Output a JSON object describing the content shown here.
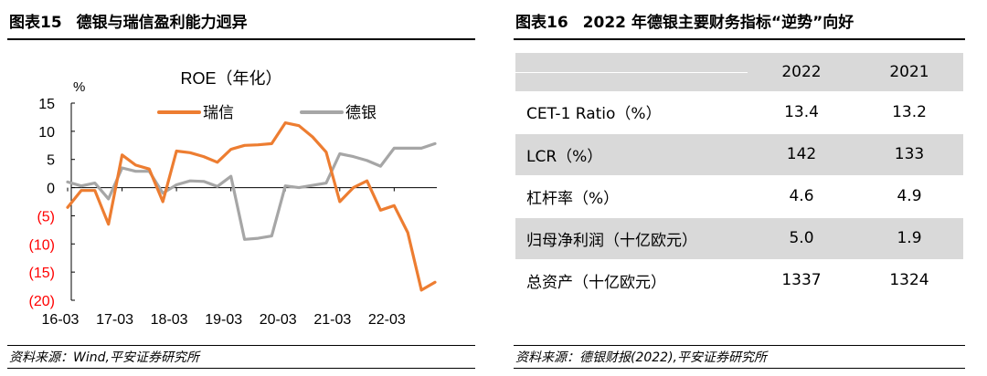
{
  "left": {
    "fig_no": "图表15",
    "fig_title": "德银与瑞信盈利能力迥异",
    "source": "资料来源：Wind,平安证券研究所"
  },
  "right": {
    "fig_no": "图表16",
    "fig_title": "2022 年德银主要财务指标“逆势”向好",
    "source": "资料来源：德银财报(2022),平安证券研究所",
    "table": {
      "headers": [
        "",
        "2022",
        "2021"
      ],
      "rows": [
        {
          "label": "CET-1 Ratio（%）",
          "v2022": "13.4",
          "v2021": "13.2"
        },
        {
          "label": "LCR（%）",
          "v2022": "142",
          "v2021": "133"
        },
        {
          "label": "杠杆率（%）",
          "v2022": "4.6",
          "v2021": "4.9"
        },
        {
          "label": "归母净利润（十亿欧元）",
          "v2022": "5.0",
          "v2021": "1.9"
        },
        {
          "label": "总资产（十亿欧元）",
          "v2022": "1337",
          "v2021": "1324"
        }
      ]
    }
  },
  "chart_data": {
    "type": "line",
    "title": "ROE（年化）",
    "ylabel": "%",
    "ylim": [
      -20,
      15
    ],
    "yticks": [
      15,
      10,
      5,
      0,
      -5,
      -10,
      -15,
      -20
    ],
    "ytick_labels": [
      "15",
      "10",
      "5",
      "0",
      "(5)",
      "(10)",
      "(15)",
      "(20)"
    ],
    "negative_tick_color": "#ff0000",
    "xtick_labels": [
      "16-03",
      "17-03",
      "18-03",
      "19-03",
      "20-03",
      "21-03",
      "22-03"
    ],
    "x": [
      "16-03",
      "16-06",
      "16-09",
      "16-12",
      "17-03",
      "17-06",
      "17-09",
      "17-12",
      "18-03",
      "18-06",
      "18-09",
      "18-12",
      "19-03",
      "19-06",
      "19-09",
      "19-12",
      "20-03",
      "20-06",
      "20-09",
      "20-12",
      "21-03",
      "21-06",
      "21-09",
      "21-12",
      "22-03",
      "22-06",
      "22-09",
      "22-12"
    ],
    "legend_position": "top",
    "series": [
      {
        "name": "瑞信",
        "color": "#ed7d31",
        "values": [
          -3.5,
          -0.5,
          -0.5,
          -6.5,
          5.8,
          4.0,
          3.3,
          -2.5,
          6.5,
          6.2,
          5.5,
          4.5,
          6.8,
          7.5,
          7.6,
          7.8,
          11.5,
          11.0,
          9.0,
          6.3,
          -2.5,
          0.0,
          1.2,
          -4.0,
          -3.2,
          -8.0,
          -18.2,
          -16.8
        ]
      },
      {
        "name": "德银",
        "color": "#a6a6a6",
        "values": [
          1.0,
          0.3,
          0.8,
          -2.0,
          3.5,
          2.9,
          2.9,
          -1.0,
          0.5,
          1.2,
          1.1,
          0.2,
          2.0,
          -9.2,
          -9.0,
          -8.6,
          0.3,
          0.0,
          0.4,
          0.8,
          6.0,
          5.5,
          4.8,
          3.8,
          7.0,
          7.0,
          7.0,
          7.8
        ]
      }
    ]
  }
}
